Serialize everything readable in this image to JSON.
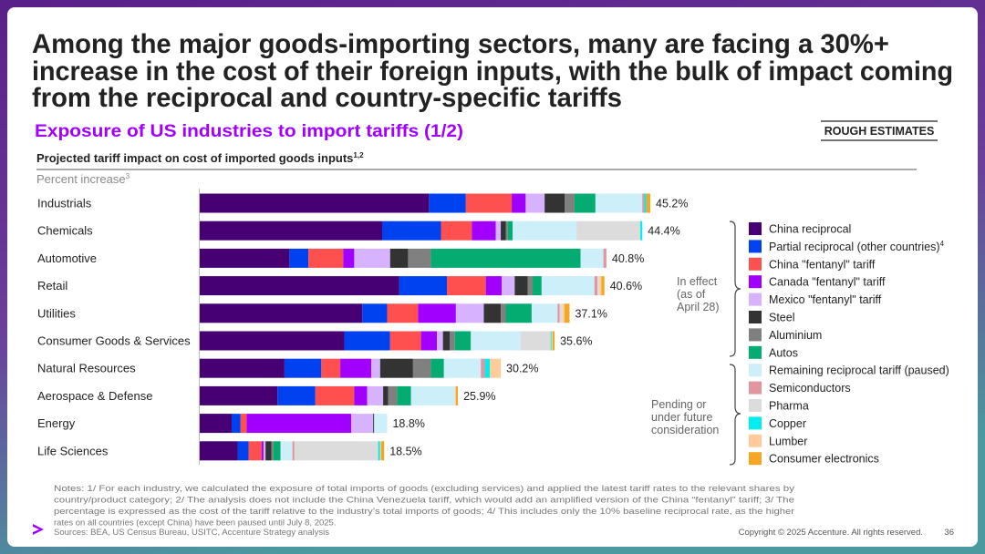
{
  "header": {
    "title_lines": [
      "Among the major goods-importing sectors, many are facing a 30%+",
      "increase in the cost of their foreign inputs, with the bulk of impact coming",
      "from the reciprocal and country-specific tariffs"
    ],
    "subtitle": "Exposure of US industries to import tariffs (1/2)",
    "badge": "ROUGH ESTIMATES"
  },
  "chart_data": {
    "type": "bar",
    "orientation": "horizontal",
    "stacked": true,
    "title": "Projected tariff impact on cost of imported goods inputs",
    "title_note": "1,2",
    "subtitle": "Percent increase",
    "subtitle_note": "3",
    "categories": [
      "Industrials",
      "Chemicals",
      "Automotive",
      "Retail",
      "Utilities",
      "Consumer Goods & Services",
      "Natural Resources",
      "Aerospace & Defense",
      "Energy",
      "Life Sciences"
    ],
    "totals": [
      45.2,
      44.4,
      40.8,
      40.6,
      37.1,
      35.6,
      30.2,
      25.9,
      18.8,
      18.5
    ],
    "total_labels": [
      "45.2%",
      "44.4%",
      "40.8%",
      "40.6%",
      "37.1%",
      "35.6%",
      "30.2%",
      "25.9%",
      "18.8%",
      "18.5%"
    ],
    "series": [
      {
        "name": "China reciprocal",
        "color": "#460073",
        "values": [
          23.0,
          18.3,
          9.0,
          20.0,
          16.3,
          14.5,
          8.5,
          7.8,
          3.2,
          3.8
        ]
      },
      {
        "name": "Partial reciprocal (other countries)",
        "color": "#0041F0",
        "values": [
          3.7,
          5.9,
          1.9,
          4.8,
          2.5,
          4.6,
          3.7,
          3.8,
          0.9,
          1.1
        ]
      },
      {
        "name": "China \"fentanyl\" tariff",
        "color": "#FF5050",
        "values": [
          4.6,
          3.1,
          3.5,
          3.9,
          3.1,
          3.1,
          1.9,
          3.9,
          0.6,
          1.3
        ]
      },
      {
        "name": "Canada \"fentanyl\" tariff",
        "color": "#A100FF",
        "values": [
          1.4,
          2.4,
          1.1,
          1.6,
          3.8,
          1.6,
          3.1,
          1.3,
          10.5,
          0.2
        ]
      },
      {
        "name": "Mexico \"fentanyl\" tariff",
        "color": "#D7B3FF",
        "values": [
          1.9,
          0.5,
          3.6,
          1.3,
          2.8,
          0.6,
          0.9,
          1.6,
          2.2,
          0.2
        ]
      },
      {
        "name": "Steel",
        "color": "#333333",
        "values": [
          2.0,
          0.5,
          1.8,
          1.3,
          1.7,
          0.7,
          3.3,
          0.5,
          0.1,
          0.6
        ]
      },
      {
        "name": "Aluminium",
        "color": "#808080",
        "values": [
          1.0,
          0.2,
          2.3,
          0.5,
          0.5,
          0.5,
          1.8,
          0.9,
          0,
          0.2
        ]
      },
      {
        "name": "Autos",
        "color": "#05AC72",
        "values": [
          2.1,
          0.5,
          15.0,
          0.9,
          2.6,
          1.6,
          1.3,
          1.4,
          0,
          0.7
        ]
      },
      {
        "name": "Remaining reciprocal tariff (paused)",
        "color": "#CCEFFA",
        "values": [
          4.7,
          6.4,
          2.3,
          5.3,
          2.6,
          5.0,
          3.7,
          4.4,
          1.3,
          1.2
        ]
      },
      {
        "name": "Semiconductors",
        "color": "#E3959F",
        "values": [
          0.2,
          0,
          0.3,
          0.3,
          0.2,
          0,
          0.4,
          0,
          0,
          0.2
        ]
      },
      {
        "name": "Pharma",
        "color": "#DCDCDC",
        "values": [
          0,
          6.4,
          0,
          0.2,
          0.3,
          3.0,
          0,
          0,
          0,
          8.4
        ]
      },
      {
        "name": "Copper",
        "color": "#00EEF0",
        "values": [
          0.2,
          0.2,
          0,
          0,
          0,
          0.1,
          0.5,
          0,
          0,
          0.2
        ]
      },
      {
        "name": "Lumber",
        "color": "#FFCC99",
        "values": [
          0,
          0,
          0,
          0.2,
          0.2,
          0.1,
          1.1,
          0.1,
          0,
          0.1
        ]
      },
      {
        "name": "Consumer electronics",
        "color": "#F5A623",
        "values": [
          0.4,
          0,
          0,
          0.3,
          0.5,
          0.2,
          0,
          0.2,
          0,
          0.3
        ]
      }
    ],
    "legend_note": "4",
    "group_labels": [
      [
        "In effect",
        "(as of",
        "April 28)"
      ],
      [
        "Pending or",
        "under future",
        "consideration"
      ]
    ]
  },
  "footer": {
    "notes": [
      "Notes: 1/ For each industry, we calculated the exposure of total imports of goods (excluding services) and applied the latest tariff rates to the relevant shares by",
      "country/product category; 2/ The analysis does not include the China Venezuela tariff, which would add an amplified version of the China “fentanyl” tariff; 3/ The",
      "percentage is expressed as the cost of the tariff relative to the industry’s total imports of goods; 4/ This includes only the 10% baseline reciprocal rate, as the higher",
      "rates on all countries (except China) have been paused until July 8, 2025."
    ],
    "sources": "Sources: BEA, US Census Bureau, USITC, Accenture Strategy analysis",
    "copyright": "Copyright © 2025 Accenture. All rights reserved.",
    "page": "36"
  }
}
